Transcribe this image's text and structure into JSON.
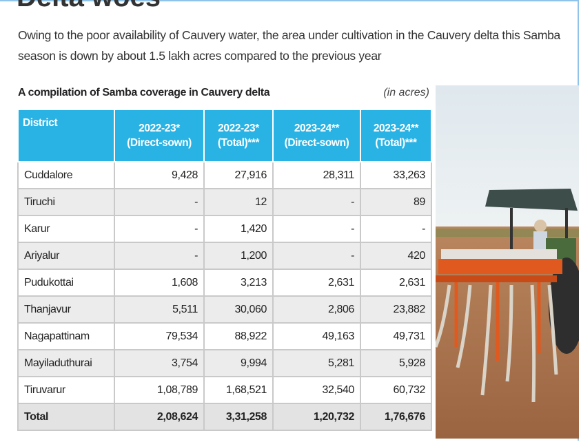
{
  "heading": "Delta woes",
  "intro": "Owing to the poor availability of Cauvery water, the area under cultivation in the Cauvery delta this Samba season is down by about 1.5 lakh acres compared to the previous year",
  "table": {
    "title": "A compilation of Samba coverage in Cauvery delta",
    "unit": "(in acres)",
    "headers": [
      [
        "District"
      ],
      [
        "2022-23*",
        "(Direct-sown)"
      ],
      [
        "2022-23*",
        "(Total)***"
      ],
      [
        "2023-24**",
        "(Direct-sown)"
      ],
      [
        "2023-24**",
        "(Total)***"
      ]
    ],
    "rows": [
      [
        "Cuddalore",
        "9,428",
        "27,916",
        "28,311",
        "33,263"
      ],
      [
        "Tiruchi",
        "-",
        "12",
        "-",
        "89"
      ],
      [
        "Karur",
        "-",
        "1,420",
        "-",
        "-"
      ],
      [
        "Ariyalur",
        "-",
        "1,200",
        "-",
        "420"
      ],
      [
        "Pudukottai",
        "1,608",
        "3,213",
        "2,631",
        "2,631"
      ],
      [
        "Thanjavur",
        "5,511",
        "30,060",
        "2,806",
        "23,882"
      ],
      [
        "Nagapattinam",
        "79,534",
        "88,922",
        "49,163",
        "49,731"
      ],
      [
        "Mayiladuthurai",
        "3,754",
        "9,994",
        "5,281",
        "5,928"
      ],
      [
        "Tiruvarur",
        "1,08,789",
        "1,68,521",
        "32,540",
        "60,732"
      ]
    ],
    "total": [
      "Total",
      "2,08,624",
      "3,31,258",
      "1,20,732",
      "1,76,676"
    ]
  }
}
